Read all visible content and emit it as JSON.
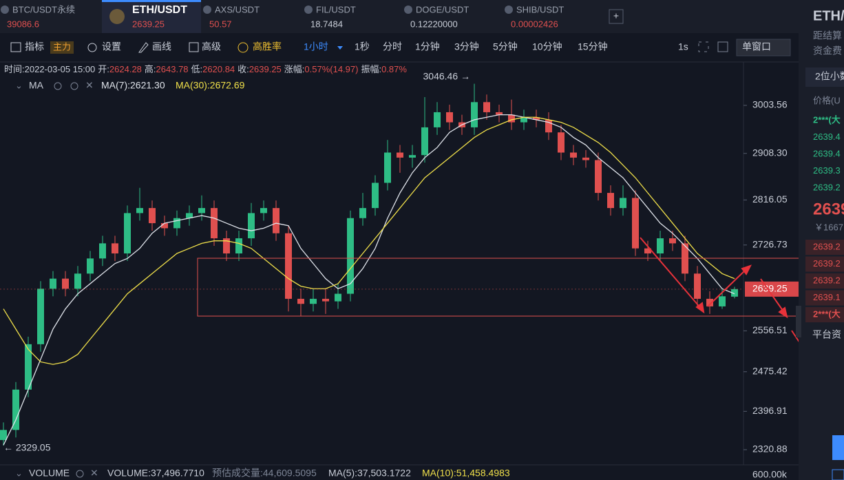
{
  "tabs": [
    {
      "name": "BTC/USDT永续",
      "price": "39086.6",
      "up": false
    },
    {
      "name": "ETH/USDT",
      "price": "2639.25",
      "up": false
    },
    {
      "name": "AXS/USDT",
      "price": "50.57",
      "up": false
    },
    {
      "name": "FIL/USDT",
      "price": "18.7484",
      "up": true
    },
    {
      "name": "DOGE/USDT",
      "price": "0.12220000",
      "up": true
    },
    {
      "name": "SHIB/USDT",
      "price": "0.00002426",
      "up": false
    }
  ],
  "toolbar": {
    "indicator": "指标",
    "main": "主力",
    "settings": "设置",
    "draw": "画线",
    "advanced": "高级",
    "win_rate": "高胜率",
    "interval": "1小时",
    "intervals": [
      "1秒",
      "分时",
      "1分钟",
      "3分钟",
      "5分钟",
      "10分钟",
      "15分钟"
    ],
    "speed": "1s",
    "window": "单窗口"
  },
  "info": [
    [
      "时间:",
      "2022-03-05 15:00"
    ],
    [
      "开:",
      "2624.28"
    ],
    [
      "高:",
      "2643.78"
    ],
    [
      "低:",
      "2620.84"
    ],
    [
      "收:",
      "2639.25"
    ],
    [
      "涨幅:",
      "0.57%(14.97)"
    ],
    [
      "振幅:",
      "0.87%"
    ]
  ],
  "ma_label": "MA",
  "volume": {
    "label": "VOLUME",
    "value": "VOLUME:37,496.7710",
    "estimate": "预估成交量:44,609.5095",
    "ma5": "MA(5):37,503.1722",
    "ma10": "MA(10):51,458.4983",
    "axis": "600.00k"
  },
  "side_panel": {
    "title": "ETH/",
    "line1": "距结算",
    "line2": "资金费",
    "decimals": "2位小数",
    "price_head": "价格(U",
    "asks": [
      "2***(大",
      "2639.4",
      "2639.4",
      "2639.3",
      "2639.2"
    ],
    "last": "2639",
    "mark": "￥1667",
    "bids": [
      "2639.2",
      "2639.2",
      "2639.2",
      "2639.1",
      "2***(大"
    ],
    "footer": "平台资"
  },
  "chart_data": {
    "type": "candlestick",
    "open": [
      2340,
      2360,
      2440,
      2530,
      2640,
      2660,
      2640,
      2670,
      2700,
      2730,
      2710,
      2790,
      2800,
      2770,
      2760,
      2780,
      2790,
      2800,
      2740,
      2710,
      2740,
      2790,
      2800,
      2750,
      2620,
      2610,
      2620,
      2615,
      2630,
      2780,
      2800,
      2850,
      2910,
      2900,
      2905,
      2960,
      2990,
      2970,
      2960,
      3010,
      2990,
      2985,
      2970,
      2980,
      2975,
      2950,
      2910,
      2900,
      2895,
      2830,
      2800,
      2820,
      2720,
      2710,
      2740,
      2730,
      2670,
      2620,
      2605,
      2624.28
    ],
    "high": [
      2375,
      2455,
      2545,
      2655,
      2675,
      2675,
      2685,
      2715,
      2745,
      2745,
      2805,
      2840,
      2815,
      2785,
      2795,
      2805,
      2825,
      2815,
      2755,
      2755,
      2810,
      2815,
      2815,
      2765,
      2640,
      2640,
      2640,
      2650,
      2795,
      2830,
      2865,
      2935,
      2925,
      2925,
      3020,
      3010,
      3005,
      2985,
      3046.46,
      3025,
      3005,
      3015,
      2995,
      2995,
      2990,
      2965,
      2925,
      2915,
      2910,
      2845,
      2845,
      2835,
      2735,
      2755,
      2755,
      2745,
      2685,
      2635,
      2640,
      2643.78
    ],
    "low": [
      2329.05,
      2345,
      2425,
      2515,
      2625,
      2625,
      2625,
      2655,
      2685,
      2695,
      2695,
      2775,
      2755,
      2745,
      2745,
      2765,
      2775,
      2725,
      2695,
      2695,
      2725,
      2775,
      2735,
      2595,
      2585,
      2595,
      2590,
      2600,
      2615,
      2765,
      2785,
      2835,
      2870,
      2880,
      2890,
      2945,
      2955,
      2945,
      2945,
      2975,
      2970,
      2955,
      2955,
      2960,
      2935,
      2895,
      2885,
      2880,
      2815,
      2785,
      2785,
      2705,
      2695,
      2695,
      2715,
      2655,
      2605,
      2590,
      2600,
      2620.84
    ],
    "close": [
      2360,
      2440,
      2530,
      2640,
      2660,
      2640,
      2670,
      2700,
      2730,
      2710,
      2790,
      2800,
      2770,
      2760,
      2780,
      2790,
      2800,
      2740,
      2710,
      2740,
      2790,
      2800,
      2750,
      2620,
      2610,
      2620,
      2615,
      2630,
      2780,
      2800,
      2850,
      2910,
      2900,
      2905,
      2960,
      2990,
      2970,
      2960,
      3010,
      2990,
      2985,
      2970,
      2980,
      2975,
      2950,
      2910,
      2900,
      2895,
      2830,
      2800,
      2820,
      2720,
      2710,
      2740,
      2730,
      2670,
      2620,
      2605,
      2625,
      2639.25
    ],
    "series": [
      {
        "name": "MA(7):2621.30",
        "color": "#dfe3ea",
        "values": [
          2330,
          2380,
          2440,
          2500,
          2560,
          2600,
          2630,
          2650,
          2670,
          2690,
          2700,
          2720,
          2750,
          2770,
          2775,
          2780,
          2785,
          2780,
          2770,
          2760,
          2755,
          2760,
          2770,
          2765,
          2720,
          2690,
          2660,
          2640,
          2650,
          2680,
          2720,
          2780,
          2830,
          2870,
          2900,
          2920,
          2950,
          2965,
          2975,
          2980,
          2985,
          2985,
          2980,
          2975,
          2970,
          2960,
          2940,
          2925,
          2900,
          2880,
          2860,
          2830,
          2800,
          2770,
          2750,
          2725,
          2700,
          2670,
          2640,
          2630
        ]
      },
      {
        "name": "MA(30):2672.69",
        "color": "#f0e04a",
        "values": [
          2600,
          2560,
          2520,
          2495,
          2490,
          2495,
          2510,
          2540,
          2570,
          2600,
          2630,
          2650,
          2670,
          2690,
          2710,
          2720,
          2730,
          2735,
          2735,
          2730,
          2720,
          2700,
          2680,
          2660,
          2645,
          2640,
          2640,
          2650,
          2680,
          2710,
          2740,
          2770,
          2800,
          2830,
          2860,
          2880,
          2900,
          2920,
          2940,
          2955,
          2965,
          2975,
          2980,
          2980,
          2975,
          2970,
          2960,
          2945,
          2930,
          2910,
          2885,
          2860,
          2830,
          2800,
          2770,
          2740,
          2710,
          2690,
          2670,
          2660
        ]
      }
    ],
    "up_color": "#2ebd85",
    "down_color": "#e0504f",
    "ylim": [
      2290.8,
      3089.6
    ],
    "yticks": [
      3003.56,
      {
        "value": 2908.3,
        "label": "2908.30"
      },
      2816.05,
      2726.73,
      2556.51,
      2475.42,
      2396.91,
      2320.88
    ],
    "last_price": 2639.25,
    "annotations": [
      {
        "text": "3046.46 →",
        "value": 3046.46,
        "index": 38,
        "side": "left"
      },
      {
        "text": "← 2329.05",
        "value": 2329.05,
        "index": 0,
        "side": "right"
      }
    ]
  }
}
